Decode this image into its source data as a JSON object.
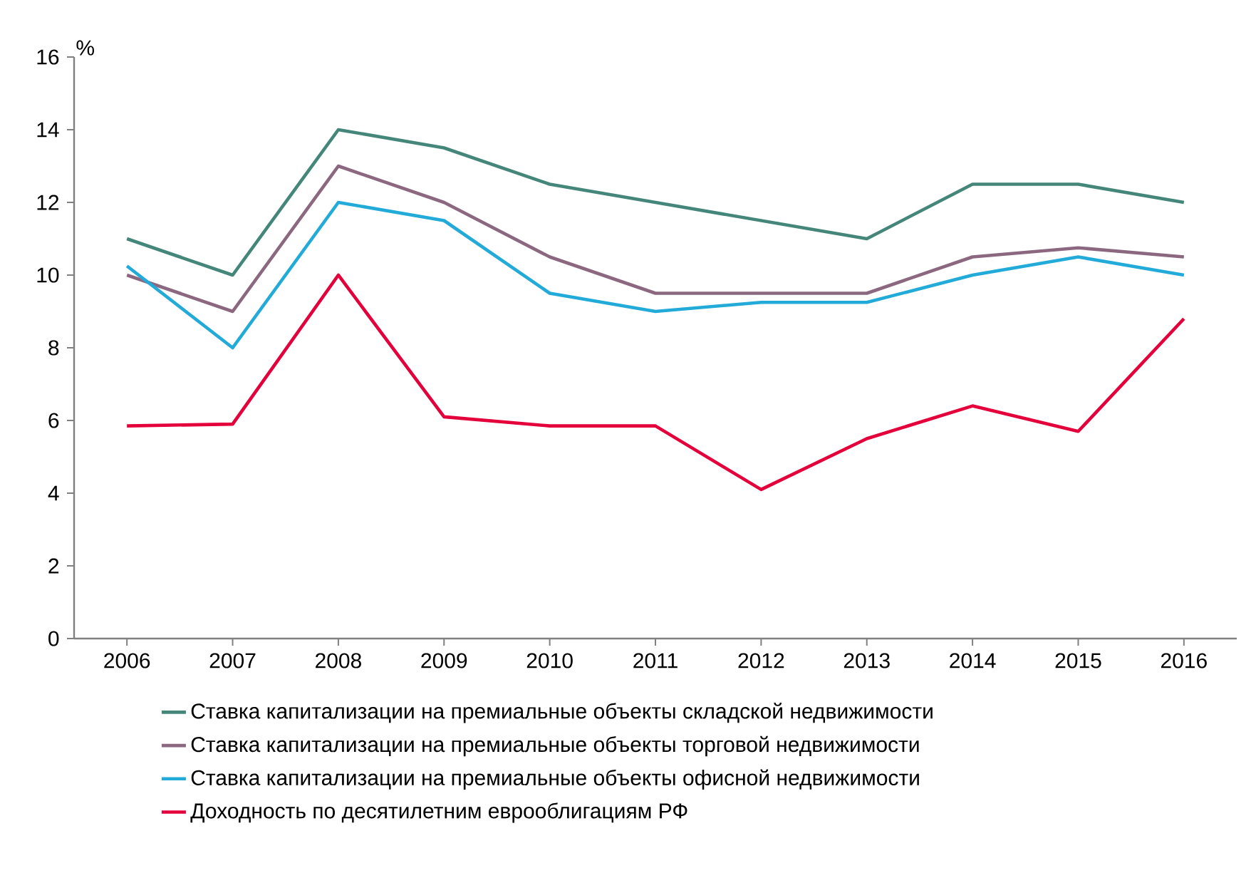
{
  "chart_data": {
    "type": "line",
    "ylabel": "%",
    "categories": [
      "2006",
      "2007",
      "2008",
      "2009",
      "2010",
      "2011",
      "2012",
      "2013",
      "2014",
      "2015",
      "2016"
    ],
    "ylim": [
      0,
      16
    ],
    "yticks": [
      0,
      2,
      4,
      6,
      8,
      10,
      12,
      14,
      16
    ],
    "legend": "bottom",
    "series": [
      {
        "name": "Ставка капитализации на премиальные объекты складской недвижимости",
        "color": "#44877a",
        "values": [
          11,
          10,
          14,
          13.5,
          12.5,
          12,
          11.5,
          11,
          12.5,
          12.5,
          12
        ]
      },
      {
        "name": "Ставка капитализации на премиальные объекты торговой недвижимости",
        "color": "#8c6880",
        "values": [
          10,
          9,
          13,
          12,
          10.5,
          9.5,
          9.5,
          9.5,
          10.5,
          10.75,
          10.5
        ]
      },
      {
        "name": "Ставка капитализации на премиальные объекты офисной недвижимости",
        "color": "#22aad8",
        "values": [
          10.25,
          8,
          12,
          11.5,
          9.5,
          9,
          9.25,
          9.25,
          10,
          10.5,
          10
        ]
      },
      {
        "name": "Доходность по десятилетним еврооблигациям РФ",
        "color": "#e4003a",
        "values": [
          5.85,
          5.9,
          10,
          6.1,
          5.85,
          5.85,
          4.1,
          5.5,
          6.4,
          5.7,
          8.8
        ]
      }
    ]
  }
}
